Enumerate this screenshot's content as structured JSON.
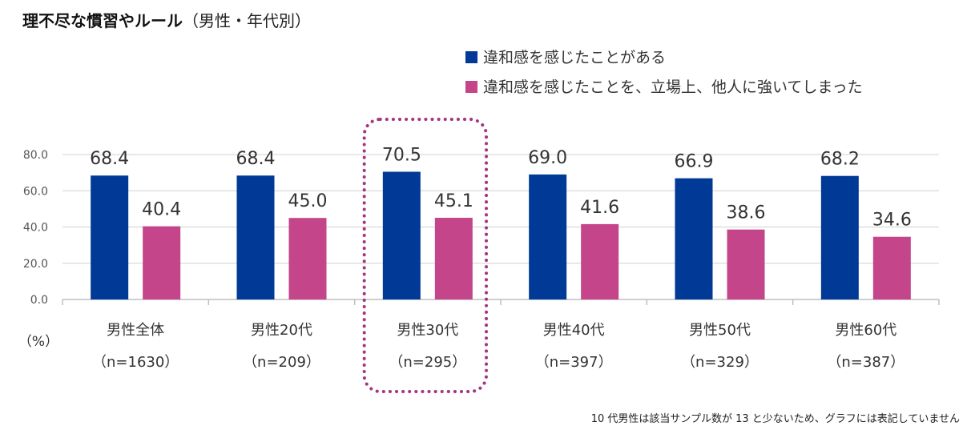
{
  "title": {
    "main": "理不尽な慣習やルール",
    "sub": "（男性・年代別）"
  },
  "footnote": "10 代男性は該当サンプル数が 13 と少ないため、グラフには表記していません",
  "chart_data": {
    "type": "bar",
    "unit_label": "（%）",
    "ylim": [
      0,
      80
    ],
    "yticks": [
      "0.0",
      "20.0",
      "40.0",
      "60.0",
      "80.0"
    ],
    "ytick_values": [
      0,
      20,
      40,
      60,
      80
    ],
    "grid": true,
    "legend_position": "top-right",
    "categories": [
      "男性全体",
      "男性20代",
      "男性30代",
      "男性40代",
      "男性50代",
      "男性60代"
    ],
    "sample_sizes": [
      "（n=1630）",
      "（n=209）",
      "（n=295）",
      "（n=397）",
      "（n=329）",
      "（n=387）"
    ],
    "highlighted_category": 2,
    "series": [
      {
        "name": "違和感を感じたことがある",
        "color": "#003A96",
        "values": [
          68.4,
          68.4,
          70.5,
          69.0,
          66.9,
          68.2
        ],
        "labels": [
          "68.4",
          "68.4",
          "70.5",
          "69.0",
          "66.9",
          "68.2"
        ]
      },
      {
        "name": "違和感を感じたことを、立場上、他人に強いてしまった",
        "color": "#C4458A",
        "values": [
          40.4,
          45.0,
          45.1,
          41.6,
          38.6,
          34.6
        ],
        "labels": [
          "40.4",
          "45.0",
          "45.1",
          "41.6",
          "38.6",
          "34.6"
        ]
      }
    ],
    "highlight_color": "#A53580",
    "grid_color": "#D0D0D0",
    "axis_color": "#BFBFBF"
  }
}
